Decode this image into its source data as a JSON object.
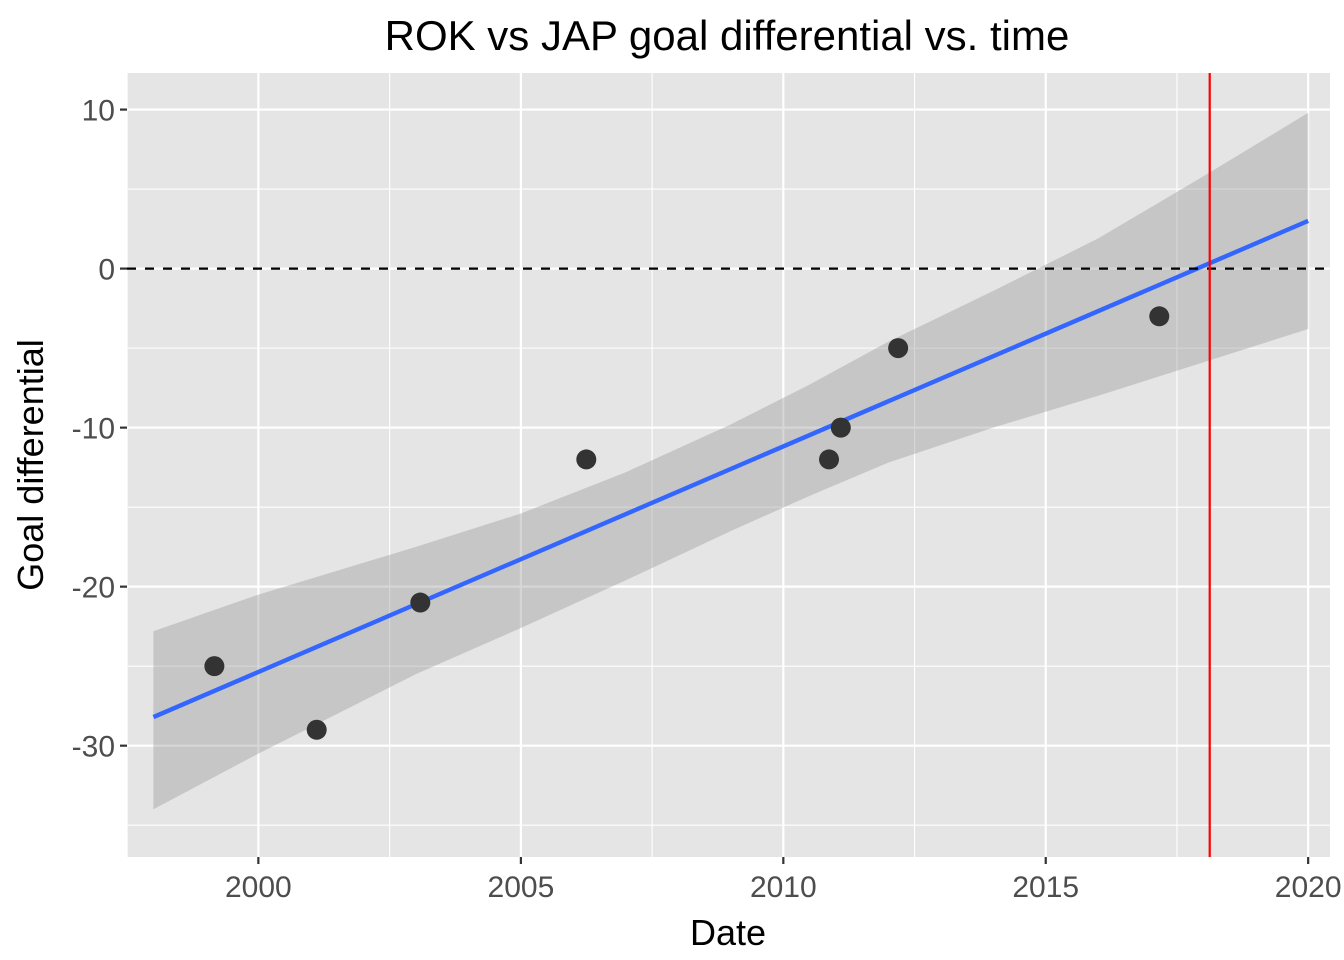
{
  "chart_data": {
    "type": "scatter",
    "title": "ROK vs JAP goal differential vs. time",
    "xlabel": "Date",
    "ylabel": "Goal differential",
    "x_scale": "date",
    "xlim": [
      "1997-07-01",
      "2020-06-01"
    ],
    "ylim": [
      -37,
      12.3
    ],
    "x_ticks": [
      "2000-01-01",
      "2005-01-01",
      "2010-01-01",
      "2015-01-01",
      "2020-01-01"
    ],
    "x_tick_labels": [
      "2000",
      "2005",
      "2010",
      "2015",
      "2020"
    ],
    "y_ticks": [
      -30,
      -20,
      -10,
      0,
      10
    ],
    "y_tick_labels": [
      "-30",
      "-20",
      "-10",
      "0",
      "10"
    ],
    "grid": true,
    "points": [
      {
        "x": "1999-03-01",
        "y": -25
      },
      {
        "x": "2001-02-10",
        "y": -29
      },
      {
        "x": "2003-02-01",
        "y": -21
      },
      {
        "x": "2006-04-01",
        "y": -12
      },
      {
        "x": "2010-11-15",
        "y": -12
      },
      {
        "x": "2011-02-05",
        "y": -10
      },
      {
        "x": "2012-03-10",
        "y": -5
      },
      {
        "x": "2017-03-01",
        "y": -3
      }
    ],
    "trend_line": {
      "x": [
        "1998-01-01",
        "2020-01-01"
      ],
      "y": [
        -28.2,
        3.0
      ],
      "color": "#3366ff"
    },
    "confidence_band": {
      "x": [
        "1998-01-01",
        "2000-01-01",
        "2003-01-01",
        "2005-01-01",
        "2007-01-01",
        "2009-01-01",
        "2010-07-01",
        "2012-01-01",
        "2014-01-01",
        "2016-01-01",
        "2018-01-01",
        "2020-01-01"
      ],
      "lower": [
        -34.0,
        -30.5,
        -25.5,
        -22.6,
        -19.6,
        -16.5,
        -14.3,
        -12.2,
        -10.0,
        -8.0,
        -5.9,
        -3.8
      ],
      "upper": [
        -22.8,
        -20.5,
        -17.5,
        -15.4,
        -12.8,
        -9.8,
        -7.3,
        -4.6,
        -1.4,
        1.9,
        5.8,
        9.8
      ],
      "color": "#999999"
    },
    "reference_lines": [
      {
        "orientation": "horizontal",
        "value": 0,
        "style": "dashed",
        "color": "#000000"
      },
      {
        "orientation": "vertical",
        "value": "2018-02-15",
        "style": "solid",
        "color": "#ff0000"
      }
    ],
    "colors": {
      "panel_background": "#e5e5e5",
      "grid_major": "#ffffff",
      "point": "#333333",
      "text": "#000000",
      "tick_text": "#4d4d4d"
    }
  }
}
